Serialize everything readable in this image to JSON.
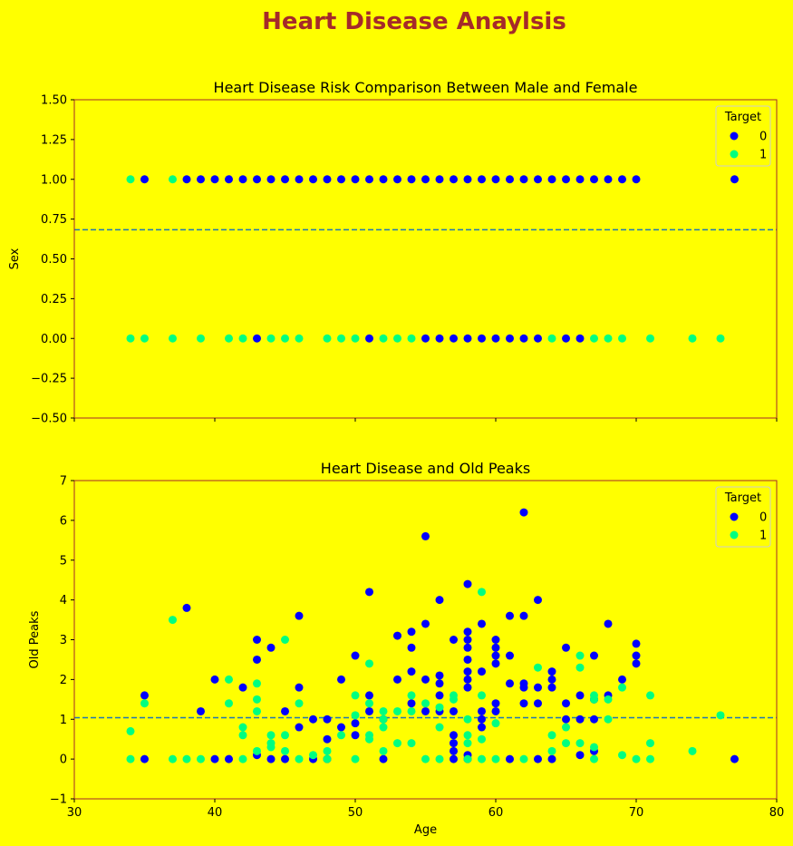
{
  "figure": {
    "title": "Heart Disease Anaylsis",
    "title_color": "#a52a2a",
    "background": "#ffff00"
  },
  "chart_data": [
    {
      "type": "scatter",
      "title": "Heart Disease Risk Comparison Between Male and Female",
      "xlabel": "",
      "ylabel": "Sex",
      "xlim": [
        30,
        80
      ],
      "ylim": [
        -0.5,
        1.5
      ],
      "xticks": [
        30,
        40,
        50,
        60,
        70,
        80
      ],
      "yticks": [
        -0.5,
        -0.25,
        0.0,
        0.25,
        0.5,
        0.75,
        1.0,
        1.25,
        1.5
      ],
      "ytick_labels": [
        "−0.50",
        "−0.25",
        "0.00",
        "0.25",
        "0.50",
        "0.75",
        "1.00",
        "1.25",
        "1.50"
      ],
      "show_xtick_labels": false,
      "mean_line": {
        "y": 0.683,
        "color": "#1f77b4",
        "style": "dashed"
      },
      "grid": false,
      "legend": {
        "title": "Target",
        "placement": "top-right",
        "entries": [
          "0",
          "1"
        ]
      },
      "series": [
        {
          "label": "0",
          "color": "#0000ff",
          "x": [
            35,
            38,
            39,
            40,
            41,
            42,
            43,
            44,
            45,
            46,
            47,
            48,
            49,
            50,
            51,
            52,
            53,
            54,
            55,
            56,
            57,
            58,
            59,
            60,
            61,
            62,
            63,
            64,
            65,
            66,
            67,
            68,
            69,
            70,
            77,
            43,
            51,
            55,
            56,
            57,
            58,
            59,
            60,
            61,
            62,
            63,
            65,
            66
          ],
          "y": [
            1,
            1,
            1,
            1,
            1,
            1,
            1,
            1,
            1,
            1,
            1,
            1,
            1,
            1,
            1,
            1,
            1,
            1,
            1,
            1,
            1,
            1,
            1,
            1,
            1,
            1,
            1,
            1,
            1,
            1,
            1,
            1,
            1,
            1,
            1,
            0,
            0,
            0,
            0,
            0,
            0,
            0,
            0,
            0,
            0,
            0,
            0,
            0
          ]
        },
        {
          "label": "1",
          "color": "#00ff7f",
          "x": [
            34,
            37,
            34,
            35,
            37,
            39,
            41,
            42,
            44,
            45,
            46,
            48,
            49,
            50,
            52,
            53,
            54,
            64,
            67,
            68,
            69,
            71,
            74,
            76
          ],
          "y": [
            1,
            1,
            0,
            0,
            0,
            0,
            0,
            0,
            0,
            0,
            0,
            0,
            0,
            0,
            0,
            0,
            0,
            0,
            0,
            0,
            0,
            0,
            0,
            0
          ]
        }
      ]
    },
    {
      "type": "scatter",
      "title": "Heart Disease and Old Peaks",
      "xlabel": "Age",
      "ylabel": "Old Peaks",
      "xlim": [
        30,
        80
      ],
      "ylim": [
        -1,
        7
      ],
      "xticks": [
        30,
        40,
        50,
        60,
        70,
        80
      ],
      "yticks": [
        -1,
        0,
        1,
        2,
        3,
        4,
        5,
        6,
        7
      ],
      "ytick_labels": [
        "−1",
        "0",
        "1",
        "2",
        "3",
        "4",
        "5",
        "6",
        "7"
      ],
      "show_xtick_labels": true,
      "mean_line": {
        "y": 1.04,
        "color": "#1f77b4",
        "style": "dashed"
      },
      "grid": false,
      "legend": {
        "title": "Target",
        "placement": "top-right",
        "entries": [
          "0",
          "1"
        ]
      },
      "series": [
        {
          "label": "0",
          "color": "#0000ff",
          "x": [
            35,
            35,
            38,
            39,
            40,
            40,
            41,
            42,
            43,
            43,
            43,
            44,
            44,
            45,
            45,
            46,
            46,
            46,
            47,
            47,
            48,
            48,
            48,
            49,
            49,
            50,
            50,
            50,
            51,
            51,
            51,
            52,
            52,
            53,
            53,
            54,
            54,
            54,
            54,
            55,
            55,
            55,
            55,
            56,
            56,
            56,
            56,
            56,
            57,
            57,
            57,
            57,
            57,
            57,
            58,
            58,
            58,
            58,
            58,
            58,
            58,
            58,
            58,
            58,
            59,
            59,
            59,
            59,
            59,
            60,
            60,
            60,
            60,
            60,
            60,
            61,
            61,
            61,
            61,
            62,
            62,
            62,
            62,
            62,
            63,
            63,
            63,
            63,
            64,
            64,
            64,
            64,
            65,
            65,
            65,
            66,
            66,
            66,
            67,
            67,
            67,
            67,
            68,
            68,
            69,
            70,
            70,
            70,
            77
          ],
          "y": [
            1.6,
            0,
            3.8,
            1.2,
            2,
            0,
            0,
            1.8,
            3,
            2.5,
            0.1,
            2.8,
            0,
            1.2,
            0,
            3.6,
            1.8,
            0.8,
            1,
            0,
            1,
            0.5,
            0,
            2,
            0.8,
            2.6,
            0.9,
            0.6,
            4.2,
            1.6,
            1.2,
            1,
            0,
            3.1,
            2,
            3.2,
            2.8,
            2.2,
            1.4,
            5.6,
            3.4,
            2,
            1.2,
            4,
            2.1,
            1.9,
            1.6,
            1.2,
            3,
            1.2,
            0.4,
            0.2,
            0.6,
            0,
            4.4,
            3.2,
            3,
            2.8,
            2.5,
            2.2,
            2,
            1.8,
            0.1,
            0,
            3.4,
            2.2,
            1.2,
            1,
            0.8,
            3,
            2.8,
            2.6,
            2.4,
            1.4,
            1.2,
            3.6,
            2.6,
            1.9,
            0,
            6.2,
            3.6,
            1.9,
            1.8,
            1.4,
            4,
            1.8,
            1.4,
            0,
            2.2,
            2,
            1.8,
            0,
            2.8,
            1.4,
            1,
            1.6,
            1,
            0.1,
            2.6,
            1.5,
            1,
            0.2,
            3.4,
            1.6,
            2,
            2.9,
            2.6,
            2.4,
            0
          ]
        },
        {
          "label": "1",
          "color": "#00ff7f",
          "x": [
            34,
            34,
            35,
            37,
            37,
            38,
            39,
            41,
            41,
            42,
            42,
            42,
            43,
            43,
            43,
            43,
            44,
            44,
            44,
            45,
            45,
            45,
            46,
            46,
            47,
            48,
            48,
            49,
            50,
            50,
            50,
            51,
            51,
            51,
            51,
            52,
            52,
            52,
            52,
            53,
            53,
            54,
            54,
            54,
            55,
            55,
            56,
            56,
            56,
            57,
            57,
            58,
            58,
            58,
            58,
            59,
            59,
            59,
            59,
            60,
            60,
            62,
            63,
            64,
            64,
            65,
            65,
            66,
            66,
            66,
            67,
            67,
            67,
            67,
            68,
            68,
            69,
            69,
            70,
            71,
            71,
            71,
            74,
            76
          ],
          "y": [
            0.7,
            0,
            1.4,
            3.5,
            0,
            0,
            0,
            2,
            1.4,
            0.8,
            0.6,
            0,
            1.9,
            1.5,
            1.2,
            0.2,
            0.6,
            0.4,
            0.3,
            3,
            0.6,
            0.2,
            1.4,
            0,
            0.1,
            0.2,
            0,
            0.6,
            1.6,
            1.1,
            0,
            2.4,
            1.4,
            0.6,
            0.5,
            1.2,
            1.0,
            0.8,
            0.2,
            1.2,
            0.4,
            1.6,
            1.2,
            0.4,
            1.4,
            0,
            1.3,
            0.8,
            0,
            1.6,
            1.5,
            1.0,
            0.6,
            0.4,
            0,
            4.2,
            1.6,
            0.5,
            0,
            0.9,
            0,
            0,
            2.3,
            0.6,
            0.2,
            0.8,
            0.4,
            2.6,
            2.3,
            0.4,
            1.6,
            1.5,
            0.3,
            0,
            1.5,
            1.0,
            1.8,
            0.1,
            0,
            1.6,
            0.4,
            0,
            0.2,
            1.1
          ]
        }
      ]
    }
  ]
}
